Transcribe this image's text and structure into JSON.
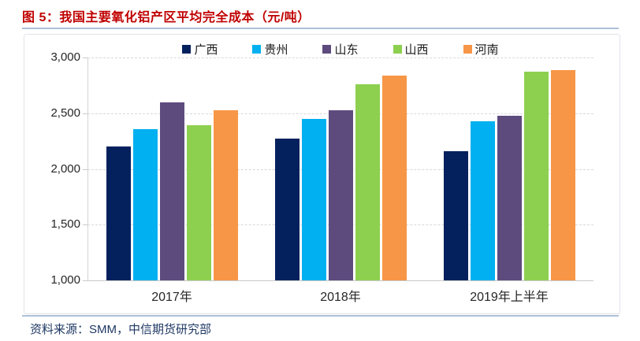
{
  "header": {
    "title": "图 5：我国主要氧化铝产区平均完全成本（元/吨）"
  },
  "footer": {
    "source": "资料来源：SMM，中信期货研究部"
  },
  "colors": {
    "title_text": "#C00000",
    "rule": "#AEC0D6",
    "footer_text": "#1F3864",
    "axis": "#C9C9C9",
    "gridline": "#D8D8D8"
  },
  "chart_data": {
    "type": "bar",
    "title": "我国主要氧化铝产区平均完全成本（元/吨）",
    "categories": [
      "2017年",
      "2018年",
      "2019年上半年"
    ],
    "series": [
      {
        "name": "广西",
        "color": "#04215E",
        "values": [
          2200,
          2270,
          2160
        ]
      },
      {
        "name": "贵州",
        "color": "#00B0F0",
        "values": [
          2360,
          2450,
          2430
        ]
      },
      {
        "name": "山东",
        "color": "#5E4B7E",
        "values": [
          2600,
          2530,
          2480
        ]
      },
      {
        "name": "山西",
        "color": "#8DD04F",
        "values": [
          2390,
          2760,
          2870
        ]
      },
      {
        "name": "河南",
        "color": "#F79646",
        "values": [
          2530,
          2840,
          2890
        ]
      }
    ],
    "ylim": [
      1000,
      3000
    ],
    "yticks": [
      1000,
      1500,
      2000,
      2500,
      3000
    ],
    "ytick_labels": [
      "1,000",
      "1,500",
      "2,000",
      "2,500",
      "3,000"
    ],
    "xlabel": "",
    "ylabel": "",
    "grid": "horizontal-dashed",
    "legend_position": "top-center"
  }
}
